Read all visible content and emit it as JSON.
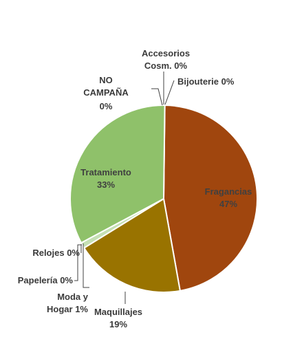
{
  "chart_data": {
    "type": "pie",
    "title": "",
    "slices": [
      {
        "name": "Fragancias",
        "value": 47,
        "label": "47%",
        "color": "#a0460e"
      },
      {
        "name": "Maquillajes",
        "value": 19,
        "label": "19%",
        "color": "#997300"
      },
      {
        "name": "Moda y Hogar",
        "value": 1,
        "label": "1%",
        "color": "#c5e0b4"
      },
      {
        "name": "Papelería",
        "value": 0,
        "label": "0%",
        "color": "#7f7f7f"
      },
      {
        "name": "Relojes",
        "value": 0,
        "label": "0%",
        "color": "#5b9bd5"
      },
      {
        "name": "Tratamiento",
        "value": 33,
        "label": "33%",
        "color": "#8fc16a"
      },
      {
        "name": "NO CAMPAÑA",
        "value": 0,
        "label": "0%",
        "color": "#ffc000"
      },
      {
        "name": "Accesorios Cosm.",
        "value": 0,
        "label": "0%",
        "color": "#4472c4"
      },
      {
        "name": "Bijouterie",
        "value": 0,
        "label": "0%",
        "color": "#ed7d31"
      }
    ],
    "legend": "none",
    "data_labels": "category name and percentage"
  }
}
